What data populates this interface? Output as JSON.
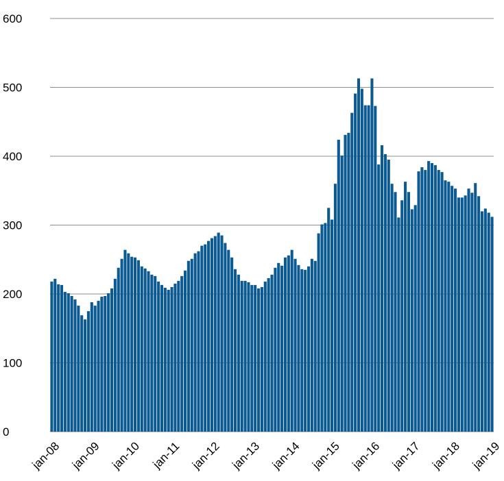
{
  "chart_data": {
    "type": "bar",
    "color": "#0b5a91",
    "grid": true,
    "ylim": [
      0,
      600
    ],
    "yticks": [
      0,
      100,
      200,
      300,
      400,
      500,
      600
    ],
    "categories": [
      "jan-08",
      null,
      null,
      null,
      null,
      null,
      null,
      null,
      null,
      null,
      null,
      null,
      "jan-09",
      null,
      null,
      null,
      null,
      null,
      null,
      null,
      null,
      null,
      null,
      null,
      "jan-10",
      null,
      null,
      null,
      null,
      null,
      null,
      null,
      null,
      null,
      null,
      null,
      "jan-11",
      null,
      null,
      null,
      null,
      null,
      null,
      null,
      null,
      null,
      null,
      null,
      "jan-12",
      null,
      null,
      null,
      null,
      null,
      null,
      null,
      null,
      null,
      null,
      null,
      "jan-13",
      null,
      null,
      null,
      null,
      null,
      null,
      null,
      null,
      null,
      null,
      null,
      "jan-14",
      null,
      null,
      null,
      null,
      null,
      null,
      null,
      null,
      null,
      null,
      null,
      "jan-15",
      null,
      null,
      null,
      null,
      null,
      null,
      null,
      null,
      null,
      null,
      null,
      "jan-16",
      null,
      null,
      null,
      null,
      null,
      null,
      null,
      null,
      null,
      null,
      null,
      "jan-17",
      null,
      null,
      null,
      null,
      null,
      null,
      null,
      null,
      null,
      null,
      null,
      "jan-18",
      null,
      null,
      null,
      null,
      null,
      null,
      null,
      null,
      null,
      null,
      null,
      "jan-19"
    ],
    "values": [
      218,
      222,
      214,
      213,
      203,
      201,
      197,
      192,
      183,
      169,
      163,
      175,
      188,
      183,
      190,
      196,
      197,
      201,
      208,
      222,
      238,
      251,
      264,
      259,
      254,
      253,
      249,
      240,
      237,
      233,
      228,
      226,
      218,
      213,
      209,
      206,
      210,
      215,
      219,
      226,
      234,
      248,
      251,
      259,
      262,
      270,
      272,
      277,
      281,
      284,
      289,
      285,
      274,
      264,
      253,
      236,
      228,
      219,
      219,
      217,
      213,
      213,
      208,
      210,
      218,
      223,
      228,
      238,
      245,
      241,
      253,
      256,
      264,
      251,
      242,
      236,
      235,
      240,
      251,
      248,
      288,
      301,
      303,
      325,
      308,
      360,
      424,
      401,
      431,
      434,
      463,
      491,
      513,
      498,
      474,
      474,
      513,
      473,
      388,
      416,
      403,
      395,
      360,
      348,
      311,
      336,
      363,
      348,
      323,
      329,
      378,
      384,
      380,
      393,
      390,
      387,
      380,
      377,
      365,
      363,
      357,
      353,
      340,
      340,
      343,
      353,
      347,
      361,
      342,
      320,
      324,
      318,
      312
    ]
  }
}
